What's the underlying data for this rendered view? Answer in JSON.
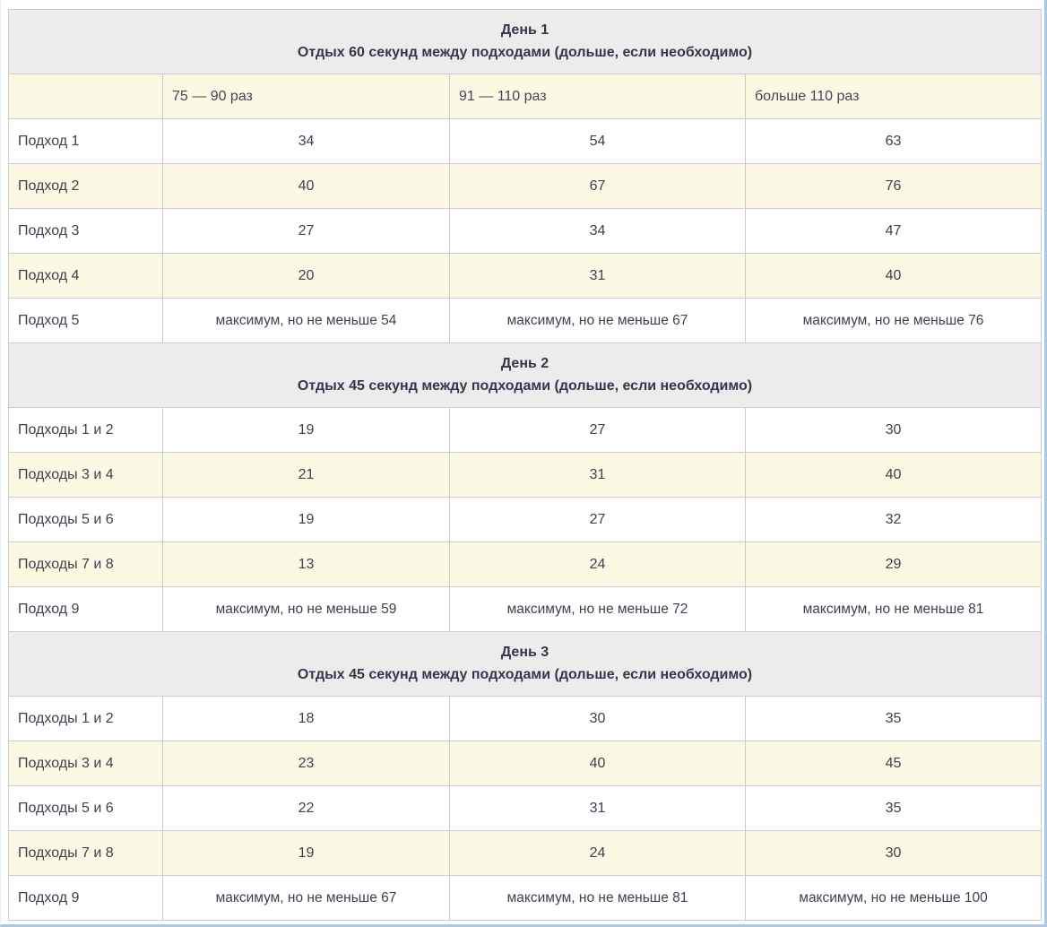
{
  "colors": {
    "section_header_bg": "#ececec",
    "stripe_bg": "#fbf9e4",
    "row_bg": "#ffffff",
    "grid_border": "#cccccc",
    "text": "#3f3f4e",
    "outer_frame": "#abc6e6"
  },
  "table": {
    "column_headers": [
      "",
      "75 — 90 раз",
      "91 — 110 раз",
      "больше 110 раз"
    ],
    "sections": [
      {
        "title": "День 1",
        "subtitle": "Отдых 60 секунд между подходами (дольше, если необходимо)",
        "show_column_headers": true,
        "rows": [
          {
            "label": "Подход 1",
            "values": [
              "34",
              "54",
              "63"
            ]
          },
          {
            "label": "Подход 2",
            "values": [
              "40",
              "67",
              "76"
            ]
          },
          {
            "label": "Подход 3",
            "values": [
              "27",
              "34",
              "47"
            ]
          },
          {
            "label": "Подход 4",
            "values": [
              "20",
              "31",
              "40"
            ]
          },
          {
            "label": "Подход 5",
            "values": [
              "максимум, но не меньше 54",
              "максимум, но не меньше 67",
              "максимум, но не меньше 76"
            ]
          }
        ]
      },
      {
        "title": "День 2",
        "subtitle": "Отдых 45 секунд между подходами (дольше, если необходимо)",
        "show_column_headers": false,
        "rows": [
          {
            "label": "Подходы 1 и 2",
            "values": [
              "19",
              "27",
              "30"
            ]
          },
          {
            "label": "Подходы 3 и 4",
            "values": [
              "21",
              "31",
              "40"
            ]
          },
          {
            "label": "Подходы 5 и 6",
            "values": [
              "19",
              "27",
              "32"
            ]
          },
          {
            "label": "Подходы 7 и 8",
            "values": [
              "13",
              "24",
              "29"
            ]
          },
          {
            "label": "Подход 9",
            "values": [
              "максимум, но не меньше 59",
              "максимум, но не меньше 72",
              "максимум, но не меньше 81"
            ]
          }
        ]
      },
      {
        "title": "День 3",
        "subtitle": "Отдых 45 секунд между подходами (дольше, если необходимо)",
        "show_column_headers": false,
        "rows": [
          {
            "label": "Подходы 1 и 2",
            "values": [
              "18",
              "30",
              "35"
            ]
          },
          {
            "label": "Подходы 3 и 4",
            "values": [
              "23",
              "40",
              "45"
            ]
          },
          {
            "label": "Подходы 5 и 6",
            "values": [
              "22",
              "31",
              "35"
            ]
          },
          {
            "label": "Подходы 7 и 8",
            "values": [
              "19",
              "24",
              "30"
            ]
          },
          {
            "label": "Подход 9",
            "values": [
              "максимум, но не меньше 67",
              "максимум, но не меньше 81",
              "максимум, но не меньше 100"
            ]
          }
        ]
      }
    ]
  }
}
